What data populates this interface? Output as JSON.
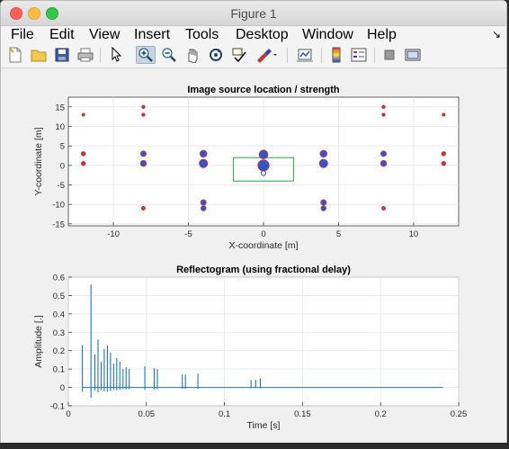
{
  "window": {
    "title": "Figure 1"
  },
  "menubar": {
    "items": [
      "File",
      "Edit",
      "View",
      "Insert",
      "Tools",
      "Desktop",
      "Window",
      "Help"
    ]
  },
  "toolbar": {
    "tools": [
      "new-figure",
      "open-file",
      "save",
      "print",
      "select-arrow",
      "zoom-in",
      "zoom-out",
      "pan",
      "rotate-3d",
      "data-cursor",
      "brush",
      "link-plot",
      "colorbar",
      "legend",
      "hide-plot-tools",
      "show-plot-tools"
    ],
    "active_tool": "zoom-in"
  },
  "chart_data": [
    {
      "type": "scatter",
      "title": "Image source location / strength",
      "xlabel": "X-coordinate [m]",
      "ylabel": "Y-coordinate [m]",
      "xlim": [
        -13,
        13
      ],
      "ylim": [
        -15.5,
        17.5
      ],
      "xticks": [
        "-10",
        "-5",
        "0",
        "5",
        "10"
      ],
      "xtick_values": [
        -10,
        -5,
        0,
        5,
        10
      ],
      "yticks": [
        "-15",
        "-10",
        "-5",
        "0",
        "5",
        "10",
        "15"
      ],
      "ytick_values": [
        -15,
        -10,
        -5,
        0,
        5,
        10,
        15
      ],
      "grid": true,
      "marker_color": "#3355cc",
      "marker_edge": "#cc3333",
      "points": [
        {
          "x": 0,
          "y": 0,
          "strength": 1.0
        },
        {
          "x": 0,
          "y": 2.8,
          "strength": 0.75
        },
        {
          "x": -4,
          "y": 0.5,
          "strength": 0.7
        },
        {
          "x": 4,
          "y": 0.5,
          "strength": 0.7
        },
        {
          "x": -4,
          "y": 3,
          "strength": 0.55
        },
        {
          "x": 4,
          "y": 3,
          "strength": 0.55
        },
        {
          "x": -8,
          "y": 0.5,
          "strength": 0.45
        },
        {
          "x": 8,
          "y": 0.5,
          "strength": 0.45
        },
        {
          "x": -8,
          "y": 3,
          "strength": 0.4
        },
        {
          "x": 8,
          "y": 3,
          "strength": 0.4
        },
        {
          "x": -4,
          "y": -9.5,
          "strength": 0.4
        },
        {
          "x": 4,
          "y": -9.5,
          "strength": 0.4
        },
        {
          "x": -4,
          "y": -11,
          "strength": 0.35
        },
        {
          "x": 4,
          "y": -11,
          "strength": 0.35
        },
        {
          "x": -12,
          "y": 0.5,
          "strength": 0.25
        },
        {
          "x": 12,
          "y": 0.5,
          "strength": 0.25
        },
        {
          "x": -12,
          "y": 3,
          "strength": 0.25
        },
        {
          "x": 12,
          "y": 3,
          "strength": 0.25
        },
        {
          "x": -8,
          "y": -11,
          "strength": 0.2
        },
        {
          "x": 8,
          "y": -11,
          "strength": 0.2
        },
        {
          "x": -8,
          "y": 13,
          "strength": 0.15
        },
        {
          "x": 8,
          "y": 13,
          "strength": 0.15
        },
        {
          "x": -8,
          "y": 15,
          "strength": 0.15
        },
        {
          "x": 8,
          "y": 15,
          "strength": 0.15
        },
        {
          "x": -12,
          "y": 13,
          "strength": 0.12
        },
        {
          "x": 12,
          "y": 13,
          "strength": 0.12
        }
      ],
      "room": {
        "x": [
          -2,
          2
        ],
        "y": [
          -4,
          2
        ],
        "color": "#22aa44"
      },
      "receiver": {
        "x": 0,
        "y": -2
      }
    },
    {
      "type": "line",
      "title": "Reflectogram (using fractional delay)",
      "xlabel": "Time [s]",
      "ylabel": "Amplitude [.]",
      "xlim": [
        0,
        0.25
      ],
      "ylim": [
        -0.1,
        0.6
      ],
      "xticks": [
        "0",
        "0.05",
        "0.1",
        "0.15",
        "0.2",
        "0.25"
      ],
      "xtick_values": [
        0,
        0.05,
        0.1,
        0.15,
        0.2,
        0.25
      ],
      "yticks": [
        "-0.1",
        "0",
        "0.1",
        "0.2",
        "0.3",
        "0.4",
        "0.5",
        "0.6"
      ],
      "ytick_values": [
        -0.1,
        0,
        0.1,
        0.2,
        0.3,
        0.4,
        0.5,
        0.6
      ],
      "grid": true,
      "line_color": "#1f77b4",
      "end_time": 0.24,
      "impulses": [
        {
          "t": 0.009,
          "a": 0.23
        },
        {
          "t": 0.0145,
          "a": 0.56
        },
        {
          "t": 0.017,
          "a": 0.18
        },
        {
          "t": 0.019,
          "a": 0.26
        },
        {
          "t": 0.021,
          "a": 0.14
        },
        {
          "t": 0.023,
          "a": 0.21
        },
        {
          "t": 0.025,
          "a": 0.23
        },
        {
          "t": 0.027,
          "a": 0.19
        },
        {
          "t": 0.029,
          "a": 0.13
        },
        {
          "t": 0.031,
          "a": 0.16
        },
        {
          "t": 0.033,
          "a": 0.14
        },
        {
          "t": 0.035,
          "a": 0.1
        },
        {
          "t": 0.037,
          "a": 0.11
        },
        {
          "t": 0.039,
          "a": 0.1
        },
        {
          "t": 0.049,
          "a": 0.115
        },
        {
          "t": 0.055,
          "a": 0.105
        },
        {
          "t": 0.057,
          "a": 0.1
        },
        {
          "t": 0.073,
          "a": 0.07
        },
        {
          "t": 0.075,
          "a": 0.07
        },
        {
          "t": 0.083,
          "a": 0.075
        },
        {
          "t": 0.117,
          "a": 0.04
        },
        {
          "t": 0.12,
          "a": 0.04
        },
        {
          "t": 0.123,
          "a": 0.05
        }
      ]
    }
  ]
}
